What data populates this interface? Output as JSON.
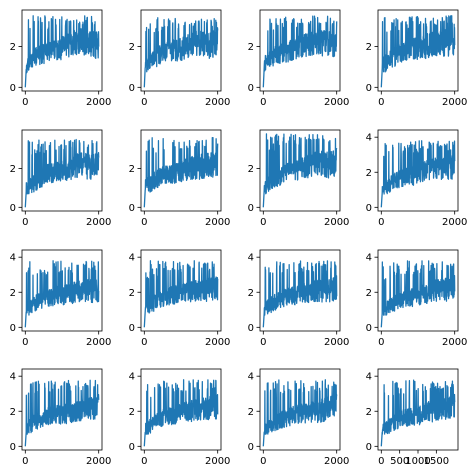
{
  "chart_data": [
    {
      "type": "line",
      "panel": "r1c1",
      "xlim": [
        0,
        2000
      ],
      "ylim": [
        0,
        3.6
      ],
      "xticks": [
        0,
        2000
      ],
      "yticks": [
        0,
        2
      ],
      "color": "#1f77b4",
      "points": [
        [
          0,
          0
        ],
        [
          30,
          1.1
        ],
        [
          100,
          1.3
        ],
        [
          300,
          1.6
        ],
        [
          600,
          1.8
        ],
        [
          900,
          1.9
        ],
        [
          1200,
          2.2
        ],
        [
          1500,
          2.4
        ],
        [
          1800,
          2.2
        ],
        [
          2000,
          2.2
        ]
      ],
      "peak": 3.5
    },
    {
      "type": "line",
      "panel": "r1c2",
      "xlim": [
        0,
        2000
      ],
      "ylim": [
        0,
        3.6
      ],
      "xticks": [
        0,
        2000
      ],
      "yticks": [
        0,
        2
      ],
      "color": "#1f77b4",
      "points": [
        [
          0,
          0
        ],
        [
          30,
          1.2
        ],
        [
          100,
          1.3
        ],
        [
          300,
          1.5
        ],
        [
          600,
          1.9
        ],
        [
          900,
          1.9
        ],
        [
          1200,
          2.1
        ],
        [
          1500,
          2.3
        ],
        [
          1800,
          2.2
        ],
        [
          2000,
          2.4
        ]
      ],
      "peak": 3.4
    },
    {
      "type": "line",
      "panel": "r1c3",
      "xlim": [
        0,
        2000
      ],
      "ylim": [
        0,
        3.6
      ],
      "xticks": [
        0,
        2000
      ],
      "yticks": [
        0,
        2
      ],
      "color": "#1f77b4",
      "points": [
        [
          0,
          0
        ],
        [
          30,
          1.2
        ],
        [
          100,
          1.3
        ],
        [
          300,
          1.6
        ],
        [
          600,
          1.8
        ],
        [
          900,
          2.0
        ],
        [
          1200,
          2.2
        ],
        [
          1500,
          2.3
        ],
        [
          1800,
          2.3
        ],
        [
          2000,
          2.3
        ]
      ],
      "peak": 3.5
    },
    {
      "type": "line",
      "panel": "r1c4",
      "xlim": [
        0,
        2000
      ],
      "ylim": [
        0,
        3.6
      ],
      "xticks": [
        0,
        2000
      ],
      "yticks": [
        0,
        2
      ],
      "color": "#1f77b4",
      "points": [
        [
          0,
          0
        ],
        [
          30,
          1.1
        ],
        [
          100,
          1.2
        ],
        [
          300,
          1.5
        ],
        [
          600,
          1.8
        ],
        [
          900,
          2.0
        ],
        [
          1200,
          2.1
        ],
        [
          1500,
          2.3
        ],
        [
          1800,
          2.3
        ],
        [
          2000,
          2.4
        ]
      ],
      "peak": 3.5
    },
    {
      "type": "line",
      "panel": "r2c1",
      "xlim": [
        0,
        2000
      ],
      "ylim": [
        0,
        3.8
      ],
      "xticks": [
        0,
        2000
      ],
      "yticks": [
        0,
        2
      ],
      "color": "#1f77b4",
      "points": [
        [
          0,
          0
        ],
        [
          30,
          1.0
        ],
        [
          100,
          1.1
        ],
        [
          300,
          1.4
        ],
        [
          600,
          1.8
        ],
        [
          900,
          2.0
        ],
        [
          1200,
          2.1
        ],
        [
          1500,
          2.3
        ],
        [
          1800,
          2.2
        ],
        [
          2000,
          2.3
        ]
      ],
      "peak": 3.5
    },
    {
      "type": "line",
      "panel": "r2c2",
      "xlim": [
        0,
        2000
      ],
      "ylim": [
        0,
        3.8
      ],
      "xticks": [
        0,
        2000
      ],
      "yticks": [
        0,
        2
      ],
      "color": "#1f77b4",
      "points": [
        [
          0,
          0
        ],
        [
          30,
          1.1
        ],
        [
          100,
          1.2
        ],
        [
          300,
          1.5
        ],
        [
          600,
          1.8
        ],
        [
          900,
          1.9
        ],
        [
          1200,
          2.1
        ],
        [
          1500,
          2.2
        ],
        [
          1800,
          2.3
        ],
        [
          2000,
          2.5
        ]
      ],
      "peak": 3.6
    },
    {
      "type": "line",
      "panel": "r2c3",
      "xlim": [
        0,
        2000
      ],
      "ylim": [
        0,
        3.8
      ],
      "xticks": [
        0,
        2000
      ],
      "yticks": [
        0,
        2
      ],
      "color": "#1f77b4",
      "points": [
        [
          0,
          0
        ],
        [
          30,
          1.1
        ],
        [
          100,
          1.2
        ],
        [
          300,
          1.5
        ],
        [
          600,
          1.9
        ],
        [
          900,
          2.0
        ],
        [
          1200,
          2.2
        ],
        [
          1500,
          2.4
        ],
        [
          1800,
          2.3
        ],
        [
          2000,
          2.5
        ]
      ],
      "peak": 3.8
    },
    {
      "type": "line",
      "panel": "r2c4",
      "xlim": [
        0,
        2000
      ],
      "ylim": [
        0,
        4.2
      ],
      "xticks": [
        0,
        2000
      ],
      "yticks": [
        0,
        2,
        4
      ],
      "color": "#1f77b4",
      "points": [
        [
          0,
          0
        ],
        [
          30,
          1.0
        ],
        [
          100,
          1.2
        ],
        [
          300,
          1.5
        ],
        [
          600,
          1.8
        ],
        [
          900,
          1.9
        ],
        [
          1200,
          2.2
        ],
        [
          1500,
          2.4
        ],
        [
          1800,
          2.3
        ],
        [
          2000,
          2.5
        ]
      ],
      "peak": 3.8
    },
    {
      "type": "line",
      "panel": "r3c1",
      "xlim": [
        0,
        2000
      ],
      "ylim": [
        0,
        4.2
      ],
      "xticks": [
        0,
        2000
      ],
      "yticks": [
        0,
        2,
        4
      ],
      "color": "#1f77b4",
      "points": [
        [
          0,
          0
        ],
        [
          30,
          1.1
        ],
        [
          100,
          1.2
        ],
        [
          300,
          1.5
        ],
        [
          600,
          1.8
        ],
        [
          900,
          1.9
        ],
        [
          1200,
          2.0
        ],
        [
          1500,
          2.2
        ],
        [
          1800,
          2.2
        ],
        [
          2000,
          2.3
        ]
      ],
      "peak": 3.8
    },
    {
      "type": "line",
      "panel": "r3c2",
      "xlim": [
        0,
        2000
      ],
      "ylim": [
        0,
        4.2
      ],
      "xticks": [
        0,
        2000
      ],
      "yticks": [
        0,
        2,
        4
      ],
      "color": "#1f77b4",
      "points": [
        [
          0,
          0
        ],
        [
          30,
          1.1
        ],
        [
          100,
          1.2
        ],
        [
          300,
          1.5
        ],
        [
          600,
          1.8
        ],
        [
          900,
          2.0
        ],
        [
          1200,
          2.1
        ],
        [
          1500,
          2.2
        ],
        [
          1800,
          2.3
        ],
        [
          2000,
          2.4
        ]
      ],
      "peak": 3.8
    },
    {
      "type": "line",
      "panel": "r3c3",
      "xlim": [
        0,
        2000
      ],
      "ylim": [
        0,
        4.2
      ],
      "xticks": [
        0,
        2000
      ],
      "yticks": [
        0,
        2,
        4
      ],
      "color": "#1f77b4",
      "points": [
        [
          0,
          0
        ],
        [
          30,
          1.0
        ],
        [
          100,
          1.2
        ],
        [
          300,
          1.5
        ],
        [
          600,
          1.8
        ],
        [
          900,
          1.9
        ],
        [
          1200,
          2.1
        ],
        [
          1500,
          2.2
        ],
        [
          1800,
          2.2
        ],
        [
          2000,
          2.4
        ]
      ],
      "peak": 3.8
    },
    {
      "type": "line",
      "panel": "r3c4",
      "xlim": [
        0,
        2000
      ],
      "ylim": [
        0,
        4.2
      ],
      "xticks": [
        0,
        2000
      ],
      "yticks": [
        0,
        2,
        4
      ],
      "color": "#1f77b4",
      "points": [
        [
          0,
          0
        ],
        [
          30,
          1.0
        ],
        [
          100,
          1.1
        ],
        [
          300,
          1.4
        ],
        [
          600,
          1.7
        ],
        [
          900,
          1.8
        ],
        [
          1200,
          2.0
        ],
        [
          1500,
          2.2
        ],
        [
          1800,
          2.3
        ],
        [
          2000,
          2.4
        ]
      ],
      "peak": 3.8
    },
    {
      "type": "line",
      "panel": "r4c1",
      "xlim": [
        0,
        2000
      ],
      "ylim": [
        0,
        4.2
      ],
      "xticks": [
        0,
        2000
      ],
      "yticks": [
        0,
        2,
        4
      ],
      "color": "#1f77b4",
      "points": [
        [
          0,
          0
        ],
        [
          30,
          1.0
        ],
        [
          100,
          1.2
        ],
        [
          300,
          1.5
        ],
        [
          600,
          1.8
        ],
        [
          900,
          1.9
        ],
        [
          1200,
          2.0
        ],
        [
          1500,
          2.2
        ],
        [
          1800,
          2.3
        ],
        [
          2000,
          2.4
        ]
      ],
      "peak": 3.8
    },
    {
      "type": "line",
      "panel": "r4c2",
      "xlim": [
        0,
        2000
      ],
      "ylim": [
        0,
        4.2
      ],
      "xticks": [
        0,
        2000
      ],
      "yticks": [
        0,
        2,
        4
      ],
      "color": "#1f77b4",
      "points": [
        [
          0,
          0
        ],
        [
          30,
          1.0
        ],
        [
          100,
          1.1
        ],
        [
          300,
          1.5
        ],
        [
          600,
          1.8
        ],
        [
          900,
          1.9
        ],
        [
          1200,
          2.1
        ],
        [
          1500,
          2.2
        ],
        [
          1800,
          2.3
        ],
        [
          2000,
          2.4
        ]
      ],
      "peak": 3.8
    },
    {
      "type": "line",
      "panel": "r4c3",
      "xlim": [
        0,
        2000
      ],
      "ylim": [
        0,
        4.2
      ],
      "xticks": [
        0,
        2000
      ],
      "yticks": [
        0,
        2,
        4
      ],
      "color": "#1f77b4",
      "points": [
        [
          0,
          0
        ],
        [
          30,
          1.0
        ],
        [
          100,
          1.1
        ],
        [
          300,
          1.4
        ],
        [
          600,
          1.7
        ],
        [
          900,
          1.9
        ],
        [
          1200,
          2.0
        ],
        [
          1500,
          2.1
        ],
        [
          1800,
          2.3
        ],
        [
          2000,
          2.4
        ]
      ],
      "peak": 3.8
    },
    {
      "type": "line",
      "panel": "r4c4",
      "xlim": [
        0,
        2000
      ],
      "ylim": [
        0,
        4.2
      ],
      "xticks": [
        0,
        500,
        1000,
        1500
      ],
      "xtick_labels": [
        "0",
        "500",
        "1000",
        "1500"
      ],
      "yticks": [
        0,
        2,
        4
      ],
      "color": "#1f77b4",
      "points": [
        [
          0,
          0
        ],
        [
          30,
          1.0
        ],
        [
          100,
          1.1
        ],
        [
          300,
          1.4
        ],
        [
          600,
          1.7
        ],
        [
          900,
          1.8
        ],
        [
          1200,
          2.0
        ],
        [
          1500,
          2.2
        ],
        [
          1800,
          2.3
        ],
        [
          2000,
          2.4
        ]
      ],
      "peak": 3.8
    }
  ]
}
